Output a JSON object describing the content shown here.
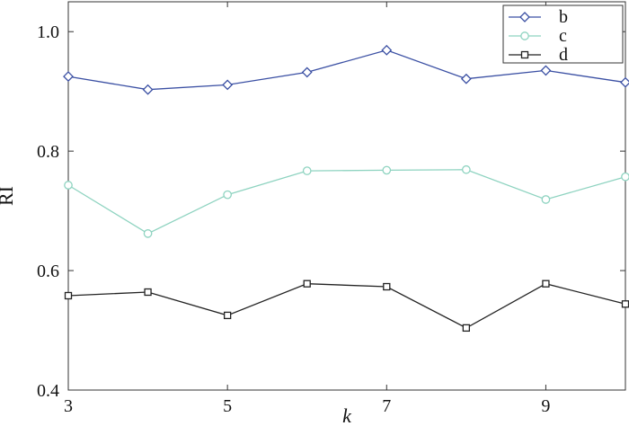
{
  "chart_data": {
    "type": "line",
    "title": "",
    "xlabel": "k",
    "ylabel": "RI",
    "x": [
      3,
      4,
      5,
      6,
      7,
      8,
      9,
      10
    ],
    "xlim": [
      3,
      10
    ],
    "ylim": [
      0.4,
      1.05
    ],
    "xticks": [
      3,
      5,
      7,
      9
    ],
    "xtick_labels": [
      "3",
      "5",
      "7",
      "9"
    ],
    "yticks": [
      0.4,
      0.6,
      0.8,
      1.0
    ],
    "ytick_labels": [
      "0.4",
      "0.6",
      "0.8",
      "1.0"
    ],
    "grid": false,
    "legend_position": "top-right",
    "series": [
      {
        "name": "b",
        "color": "#3a4fa3",
        "marker": "diamond",
        "values": [
          0.925,
          0.903,
          0.911,
          0.932,
          0.969,
          0.921,
          0.935,
          0.915
        ]
      },
      {
        "name": "c",
        "color": "#8ed3c0",
        "marker": "circle",
        "values": [
          0.743,
          0.662,
          0.727,
          0.767,
          0.768,
          0.769,
          0.719,
          0.757
        ]
      },
      {
        "name": "d",
        "color": "#222222",
        "marker": "square",
        "values": [
          0.558,
          0.564,
          0.525,
          0.578,
          0.573,
          0.504,
          0.578,
          0.544
        ]
      }
    ]
  }
}
